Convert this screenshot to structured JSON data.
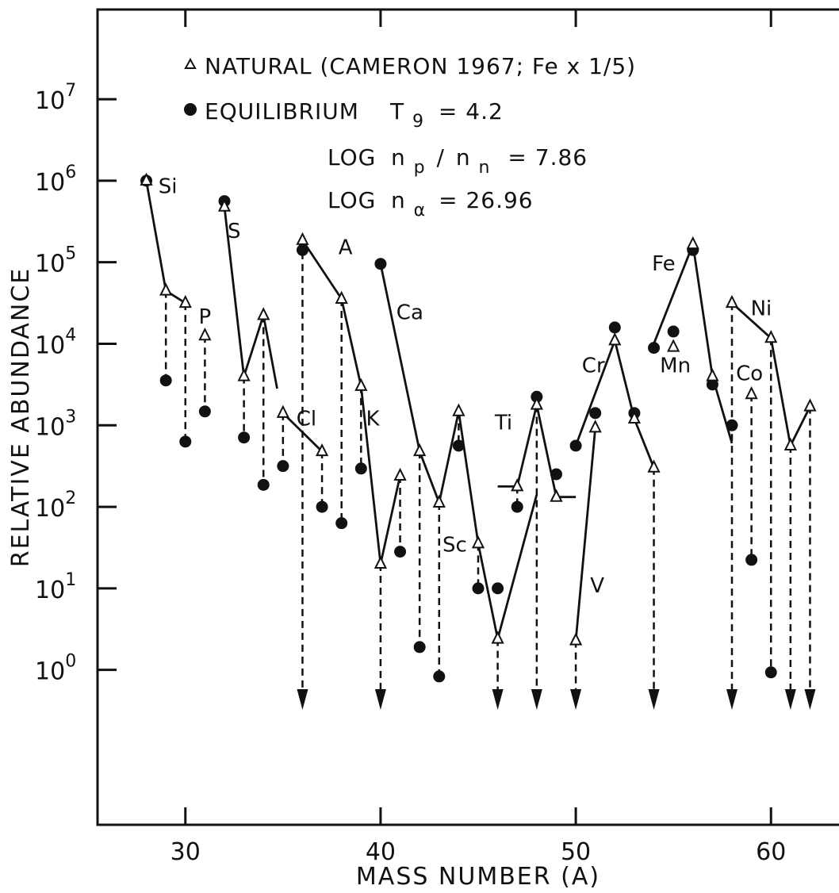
{
  "chart_data": {
    "type": "scatter",
    "x_axis": {
      "label": "MASS NUMBER (A)",
      "min": 25.5,
      "max": 64.5,
      "ticks": [
        30,
        40,
        50,
        60
      ],
      "tick_labels": [
        "30",
        "40",
        "50",
        "60"
      ]
    },
    "y_axis": {
      "label": "RELATIVE ABUNDANCE",
      "scale": "log",
      "min_exp": -1.9,
      "max_exp": 8.1,
      "ticks": [
        0,
        1,
        2,
        3,
        4,
        5,
        6,
        7
      ],
      "tick_bases": [
        "10",
        "10",
        "10",
        "10",
        "10",
        "10",
        "10",
        "10"
      ],
      "tick_exponents": [
        "0",
        "1",
        "2",
        "3",
        "4",
        "5",
        "6",
        "7"
      ]
    },
    "legend": {
      "natural": "NATURAL (CAMERON 1967; Fe x 1/5)",
      "equilibrium_prefix": "EQUILIBRIUM",
      "equilibrium_T": "T",
      "equilibrium_T_sub": "9",
      "equilibrium_T_value": "= 4.2"
    },
    "annotations": {
      "log1_prefix": "LOG",
      "log1_n1": "n",
      "log1_n1_sub": "p",
      "log1_slash": "/",
      "log1_n2": "n",
      "log1_n2_sub": "n",
      "log1_value": "= 7.86",
      "log2_prefix": "LOG",
      "log2_n": "n",
      "log2_sub": "α",
      "log2_value": "= 26.96"
    },
    "element_labels": [
      {
        "text": "Si",
        "x": 29.1,
        "y": 5.85
      },
      {
        "text": "S",
        "x": 32.5,
        "y": 5.3
      },
      {
        "text": "P",
        "x": 31.0,
        "y": 4.25
      },
      {
        "text": "A",
        "x": 38.2,
        "y": 5.1
      },
      {
        "text": "Cl",
        "x": 36.2,
        "y": 3.0
      },
      {
        "text": "K",
        "x": 39.6,
        "y": 3.0
      },
      {
        "text": "Ca",
        "x": 41.5,
        "y": 4.3
      },
      {
        "text": "Sc",
        "x": 43.8,
        "y": 1.45
      },
      {
        "text": "Ti",
        "x": 46.3,
        "y": 2.95
      },
      {
        "text": "V",
        "x": 51.1,
        "y": 0.95
      },
      {
        "text": "Cr",
        "x": 50.9,
        "y": 3.65
      },
      {
        "text": "Fe",
        "x": 54.5,
        "y": 4.9
      },
      {
        "text": "Mn",
        "x": 55.1,
        "y": 3.65
      },
      {
        "text": "Co",
        "x": 58.9,
        "y": 3.55
      },
      {
        "text": "Ni",
        "x": 59.5,
        "y": 4.35
      }
    ],
    "natural": [
      {
        "A": 28,
        "y": 6.0
      },
      {
        "A": 29,
        "y": 4.65
      },
      {
        "A": 30,
        "y": 4.5
      },
      {
        "A": 31,
        "y": 4.1
      },
      {
        "A": 32,
        "y": 5.68
      },
      {
        "A": 33,
        "y": 3.6
      },
      {
        "A": 34,
        "y": 4.35
      },
      {
        "A": 35,
        "y": 3.15
      },
      {
        "A": 36,
        "y": 5.27
      },
      {
        "A": 37,
        "y": 2.68
      },
      {
        "A": 38,
        "y": 4.55
      },
      {
        "A": 39,
        "y": 3.48
      },
      {
        "A": 40,
        "y": 1.3
      },
      {
        "A": 41,
        "y": 2.38
      },
      {
        "A": 42,
        "y": 2.68
      },
      {
        "A": 43,
        "y": 2.05
      },
      {
        "A": 44,
        "y": 3.17
      },
      {
        "A": 45,
        "y": 1.55
      },
      {
        "A": 46,
        "y": 0.38
      },
      {
        "A": 47,
        "y": 2.25
      },
      {
        "A": 48,
        "y": 3.25
      },
      {
        "A": 49,
        "y": 2.12
      },
      {
        "A": 50,
        "y": 0.36
      },
      {
        "A": 51,
        "y": 2.97
      },
      {
        "A": 52,
        "y": 4.04
      },
      {
        "A": 53,
        "y": 3.08
      },
      {
        "A": 54,
        "y": 2.48
      },
      {
        "A": 55,
        "y": 3.96
      },
      {
        "A": 56,
        "y": 5.22
      },
      {
        "A": 57,
        "y": 3.6
      },
      {
        "A": 58,
        "y": 4.5
      },
      {
        "A": 59,
        "y": 3.38
      },
      {
        "A": 60,
        "y": 4.07
      },
      {
        "A": 61,
        "y": 2.75
      },
      {
        "A": 62,
        "y": 3.23
      }
    ],
    "equilibrium": [
      {
        "A": 28,
        "y": 6.0
      },
      {
        "A": 29,
        "y": 3.55
      },
      {
        "A": 30,
        "y": 2.8
      },
      {
        "A": 31,
        "y": 3.17
      },
      {
        "A": 32,
        "y": 5.75
      },
      {
        "A": 33,
        "y": 2.85
      },
      {
        "A": 34,
        "y": 2.27
      },
      {
        "A": 35,
        "y": 2.5
      },
      {
        "A": 36,
        "y": 5.15
      },
      {
        "A": 37,
        "y": 2.0
      },
      {
        "A": 38,
        "y": 1.8
      },
      {
        "A": 39,
        "y": 2.47
      },
      {
        "A": 40,
        "y": 4.98
      },
      {
        "A": 41,
        "y": 1.45
      },
      {
        "A": 42,
        "y": 0.28
      },
      {
        "A": 43,
        "y": -0.08
      },
      {
        "A": 44,
        "y": 2.75
      },
      {
        "A": 45,
        "y": 1.0
      },
      {
        "A": 46,
        "y": 1.0
      },
      {
        "A": 47,
        "y": 2.0
      },
      {
        "A": 48,
        "y": 3.35
      },
      {
        "A": 49,
        "y": 2.4
      },
      {
        "A": 50,
        "y": 2.75
      },
      {
        "A": 51,
        "y": 3.15
      },
      {
        "A": 52,
        "y": 4.2
      },
      {
        "A": 53,
        "y": 3.15
      },
      {
        "A": 54,
        "y": 3.95
      },
      {
        "A": 55,
        "y": 4.15
      },
      {
        "A": 56,
        "y": 5.15
      },
      {
        "A": 57,
        "y": 3.5
      },
      {
        "A": 58,
        "y": 3.0
      },
      {
        "A": 59,
        "y": 1.35
      },
      {
        "A": 60,
        "y": -0.03
      }
    ],
    "upper_limit_arrows": [
      36,
      40,
      46,
      48,
      50,
      54,
      58,
      61,
      62
    ],
    "natural_curves": [
      [
        [
          28,
          6.0
        ],
        [
          29,
          4.65
        ],
        [
          30,
          4.5
        ]
      ],
      [
        [
          32,
          5.68
        ],
        [
          33,
          3.6
        ],
        [
          34,
          4.35
        ],
        [
          34.7,
          3.45
        ]
      ],
      [
        [
          35,
          3.15
        ],
        [
          37,
          2.68
        ]
      ],
      [
        [
          36,
          5.27
        ],
        [
          38,
          4.55
        ],
        [
          39,
          3.48
        ],
        [
          40,
          1.3
        ],
        [
          41,
          2.38
        ]
      ],
      [
        [
          40,
          4.98
        ],
        [
          42,
          2.68
        ],
        [
          43,
          2.05
        ],
        [
          44,
          3.17
        ],
        [
          45,
          1.55
        ],
        [
          46,
          0.38
        ],
        [
          48,
          2.15
        ]
      ],
      [
        [
          46,
          2.25
        ],
        [
          47,
          2.25
        ],
        [
          48,
          3.25
        ],
        [
          49,
          2.12
        ],
        [
          50,
          2.12
        ]
      ],
      [
        [
          50,
          0.36
        ],
        [
          51,
          2.97
        ]
      ],
      [
        [
          50,
          2.75
        ],
        [
          52,
          4.04
        ],
        [
          53,
          3.08
        ],
        [
          54,
          2.48
        ]
      ],
      [
        [
          54,
          4.0
        ],
        [
          56,
          5.22
        ],
        [
          57,
          3.6
        ],
        [
          58,
          2.78
        ]
      ],
      [
        [
          58,
          4.5
        ],
        [
          60,
          4.07
        ],
        [
          61,
          2.75
        ],
        [
          62,
          3.23
        ]
      ]
    ],
    "dashed_links": [
      [
        29,
        4.65,
        3.55
      ],
      [
        30,
        4.5,
        2.8
      ],
      [
        31,
        4.1,
        3.17
      ],
      [
        33,
        3.6,
        2.85
      ],
      [
        34,
        4.35,
        2.27
      ],
      [
        35,
        3.15,
        2.5
      ],
      [
        37,
        2.68,
        2.0
      ],
      [
        38,
        4.55,
        1.8
      ],
      [
        39,
        3.48,
        2.47
      ],
      [
        41,
        2.38,
        1.45
      ],
      [
        42,
        2.68,
        0.28
      ],
      [
        43,
        2.05,
        -0.08
      ],
      [
        44,
        3.17,
        2.75
      ],
      [
        45,
        1.55,
        1.0
      ],
      [
        47,
        2.25,
        2.0
      ],
      [
        59,
        3.38,
        1.35
      ],
      [
        60,
        4.07,
        -0.03
      ]
    ],
    "arrow_bottom": -0.45
  }
}
